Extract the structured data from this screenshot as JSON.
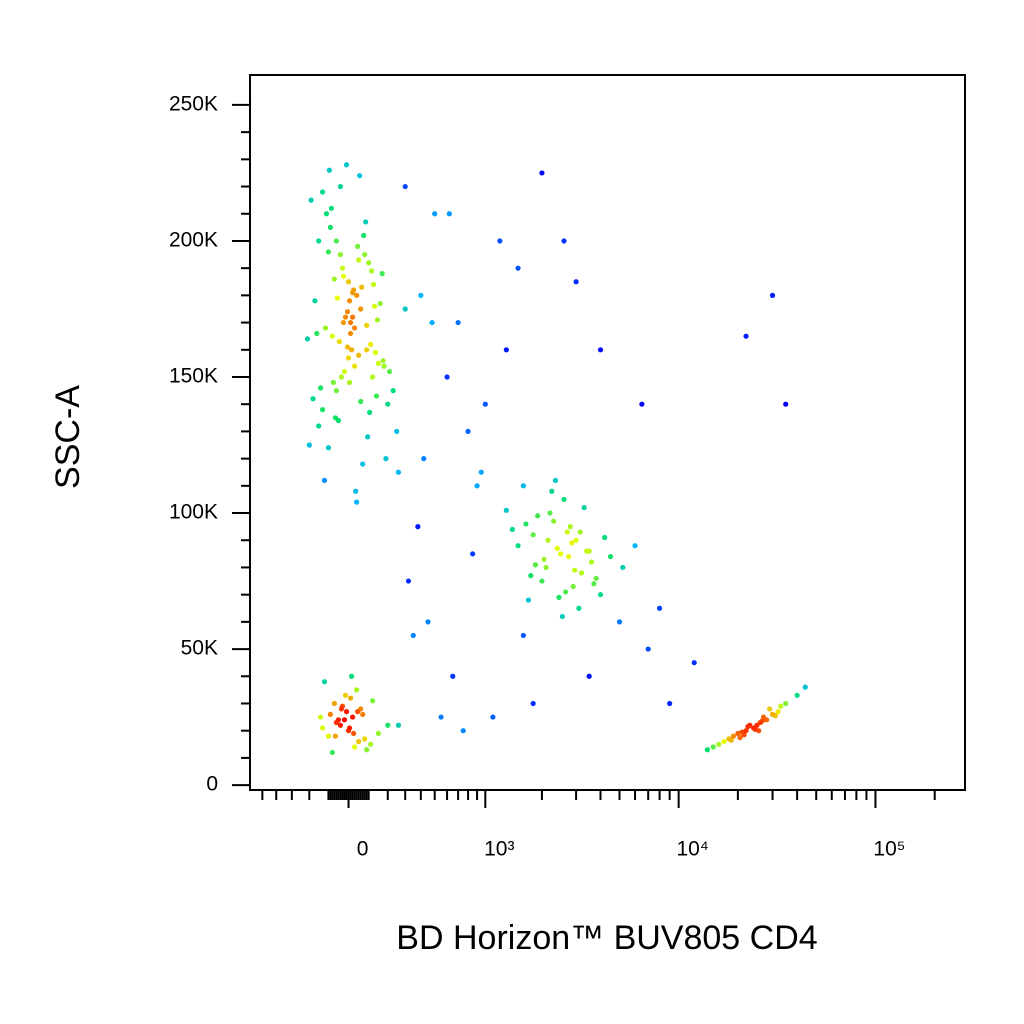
{
  "chart_data": {
    "type": "scatter",
    "x_label": "BD Horizon™ BUV805 CD4",
    "y_label": "SSC-A",
    "xscale": "biexponential",
    "xlim": [
      -600,
      285000
    ],
    "ylim": [
      -1800,
      261000
    ],
    "xticks": [
      0,
      {
        "value": 1000,
        "label": "10³"
      },
      {
        "value": 10000,
        "label": "10⁴"
      },
      {
        "value": 100000,
        "label": "10⁵"
      }
    ],
    "yticks": [
      0,
      {
        "value": 50000,
        "label": "50K"
      },
      {
        "value": 100000,
        "label": "100K"
      },
      {
        "value": 150000,
        "label": "150K"
      },
      {
        "value": 200000,
        "label": "200K"
      },
      {
        "value": 250000,
        "label": "250K"
      }
    ],
    "colormap": [
      "#0000ff",
      "#00b4ff",
      "#00e070",
      "#e8ff00",
      "#ff0000"
    ],
    "x": [
      -80,
      40,
      120,
      -150,
      10,
      200,
      -30,
      90,
      -200,
      60,
      -110,
      150,
      0,
      -60,
      30,
      250,
      -170,
      80,
      -20,
      110,
      -40,
      20,
      -130,
      170,
      50,
      -90,
      5,
      130,
      -10,
      70,
      -160,
      100,
      -50,
      25,
      180,
      -120,
      45,
      -5,
      140,
      -70,
      15,
      -190,
      95,
      -25,
      65,
      210,
      -100,
      35,
      -45,
      160,
      -140,
      55,
      0,
      115,
      -65,
      -15,
      190,
      -115,
      75,
      -35,
      20,
      135,
      -85,
      -180,
      50,
      10,
      260,
      -55,
      105,
      -95,
      30,
      -25,
      145,
      -150,
      85,
      -5,
      -75,
      125,
      40,
      -210,
      300,
      -130,
      60,
      -40,
      175,
      5,
      -100,
      90,
      -60,
      230,
      -40,
      20,
      -100,
      60,
      0,
      -70,
      110,
      -20,
      40,
      -130,
      80,
      -10,
      -60,
      150,
      10,
      -90,
      30,
      -30,
      200,
      -120,
      50,
      -50,
      5,
      120,
      -80,
      70,
      -15,
      25,
      -140,
      90,
      -35,
      15,
      260,
      -65,
      45,
      2500,
      1800,
      3200,
      2200,
      4000,
      1500,
      2800,
      3600,
      2000,
      2600,
      3000,
      1700,
      4500,
      2300,
      2900,
      1600,
      3400,
      2100,
      2700,
      3800,
      1900,
      2400,
      3100,
      5200,
      1400,
      2650,
      3300,
      2050,
      2850,
      4200,
      1750,
      2550,
      3500,
      2250,
      2950,
      1650,
      3700,
      2150,
      2750,
      1300,
      6000,
      2450,
      3150,
      1850,
      2350,
      22000,
      18000,
      26000,
      30000,
      15000,
      24000,
      20000,
      35000,
      28000,
      17000,
      23000,
      32000,
      19000,
      25000,
      40000,
      21000,
      27000,
      16000,
      29000,
      24500,
      21500,
      33000,
      18500,
      26500,
      44000,
      22500,
      14000,
      31000,
      20500,
      25500,
      400,
      600,
      800,
      1200,
      500,
      900,
      300,
      700,
      1500,
      1000,
      450,
      650,
      2000,
      350,
      1100,
      5000,
      8000,
      12000,
      6500,
      4000,
      30000,
      22000,
      35000,
      550,
      750,
      1800,
      3500,
      9000,
      420,
      380,
      1300,
      2600,
      7000,
      850,
      480,
      620,
      1600,
      3000,
      950,
      320
    ],
    "values": [
      165000,
      180000,
      150000,
      200000,
      170000,
      140000,
      190000,
      160000,
      125000,
      175000,
      210000,
      155000,
      185000,
      145000,
      168000,
      130000,
      178000,
      195000,
      152000,
      162000,
      220000,
      172000,
      138000,
      188000,
      158000,
      205000,
      148000,
      176000,
      228000,
      118000,
      166000,
      192000,
      134000,
      182000,
      154000,
      112000,
      198000,
      174000,
      143000,
      186000,
      160000,
      215000,
      128000,
      170000,
      183000,
      152000,
      196000,
      108000,
      163000,
      177000,
      146000,
      224000,
      157000,
      189000,
      135000,
      172000,
      120000,
      168000,
      202000,
      150000,
      181000,
      159000,
      212000,
      142000,
      193000,
      166000,
      115000,
      179000,
      137000,
      226000,
      154000,
      187000,
      171000,
      132000,
      207000,
      161000,
      148000,
      184000,
      104000,
      164000,
      175000,
      218000,
      141000,
      195000,
      156000,
      178000,
      124000,
      169000,
      200000,
      145000,
      22000,
      25000,
      18000,
      28000,
      20000,
      30000,
      15000,
      24000,
      35000,
      21000,
      17000,
      27000,
      23000,
      19000,
      32000,
      26000,
      14000,
      29000,
      22000,
      38000,
      16000,
      24000,
      21000,
      31000,
      12000,
      26000,
      33000,
      19000,
      25000,
      13000,
      28000,
      40000,
      22000,
      18000,
      27000,
      85000,
      92000,
      78000,
      100000,
      70000,
      88000,
      95000,
      82000,
      75000,
      105000,
      90000,
      68000,
      84000,
      97000,
      73000,
      110000,
      86000,
      80000,
      93000,
      76000,
      99000,
      87000,
      65000,
      80000,
      94000,
      71000,
      102000,
      83000,
      89000,
      91000,
      77000,
      62000,
      86000,
      108000,
      79000,
      96000,
      74000,
      90000,
      84000,
      101000,
      88000,
      69000,
      93000,
      81000,
      112000,
      20000,
      17000,
      23000,
      26000,
      14000,
      21000,
      19000,
      30000,
      24000,
      16000,
      22000,
      27000,
      18000,
      22000,
      33000,
      19500,
      25000,
      15000,
      28000,
      20500,
      18500,
      29000,
      16500,
      23500,
      36000,
      21500,
      13000,
      25500,
      17500,
      20000,
      180000,
      150000,
      130000,
      200000,
      210000,
      110000,
      220000,
      170000,
      190000,
      140000,
      60000,
      40000,
      225000,
      55000,
      25000,
      60000,
      65000,
      45000,
      140000,
      160000,
      180000,
      165000,
      140000,
      25000,
      20000,
      30000,
      40000,
      30000,
      120000,
      95000,
      160000,
      200000,
      50000,
      85000,
      170000,
      210000,
      55000,
      185000,
      115000,
      75000
    ]
  }
}
